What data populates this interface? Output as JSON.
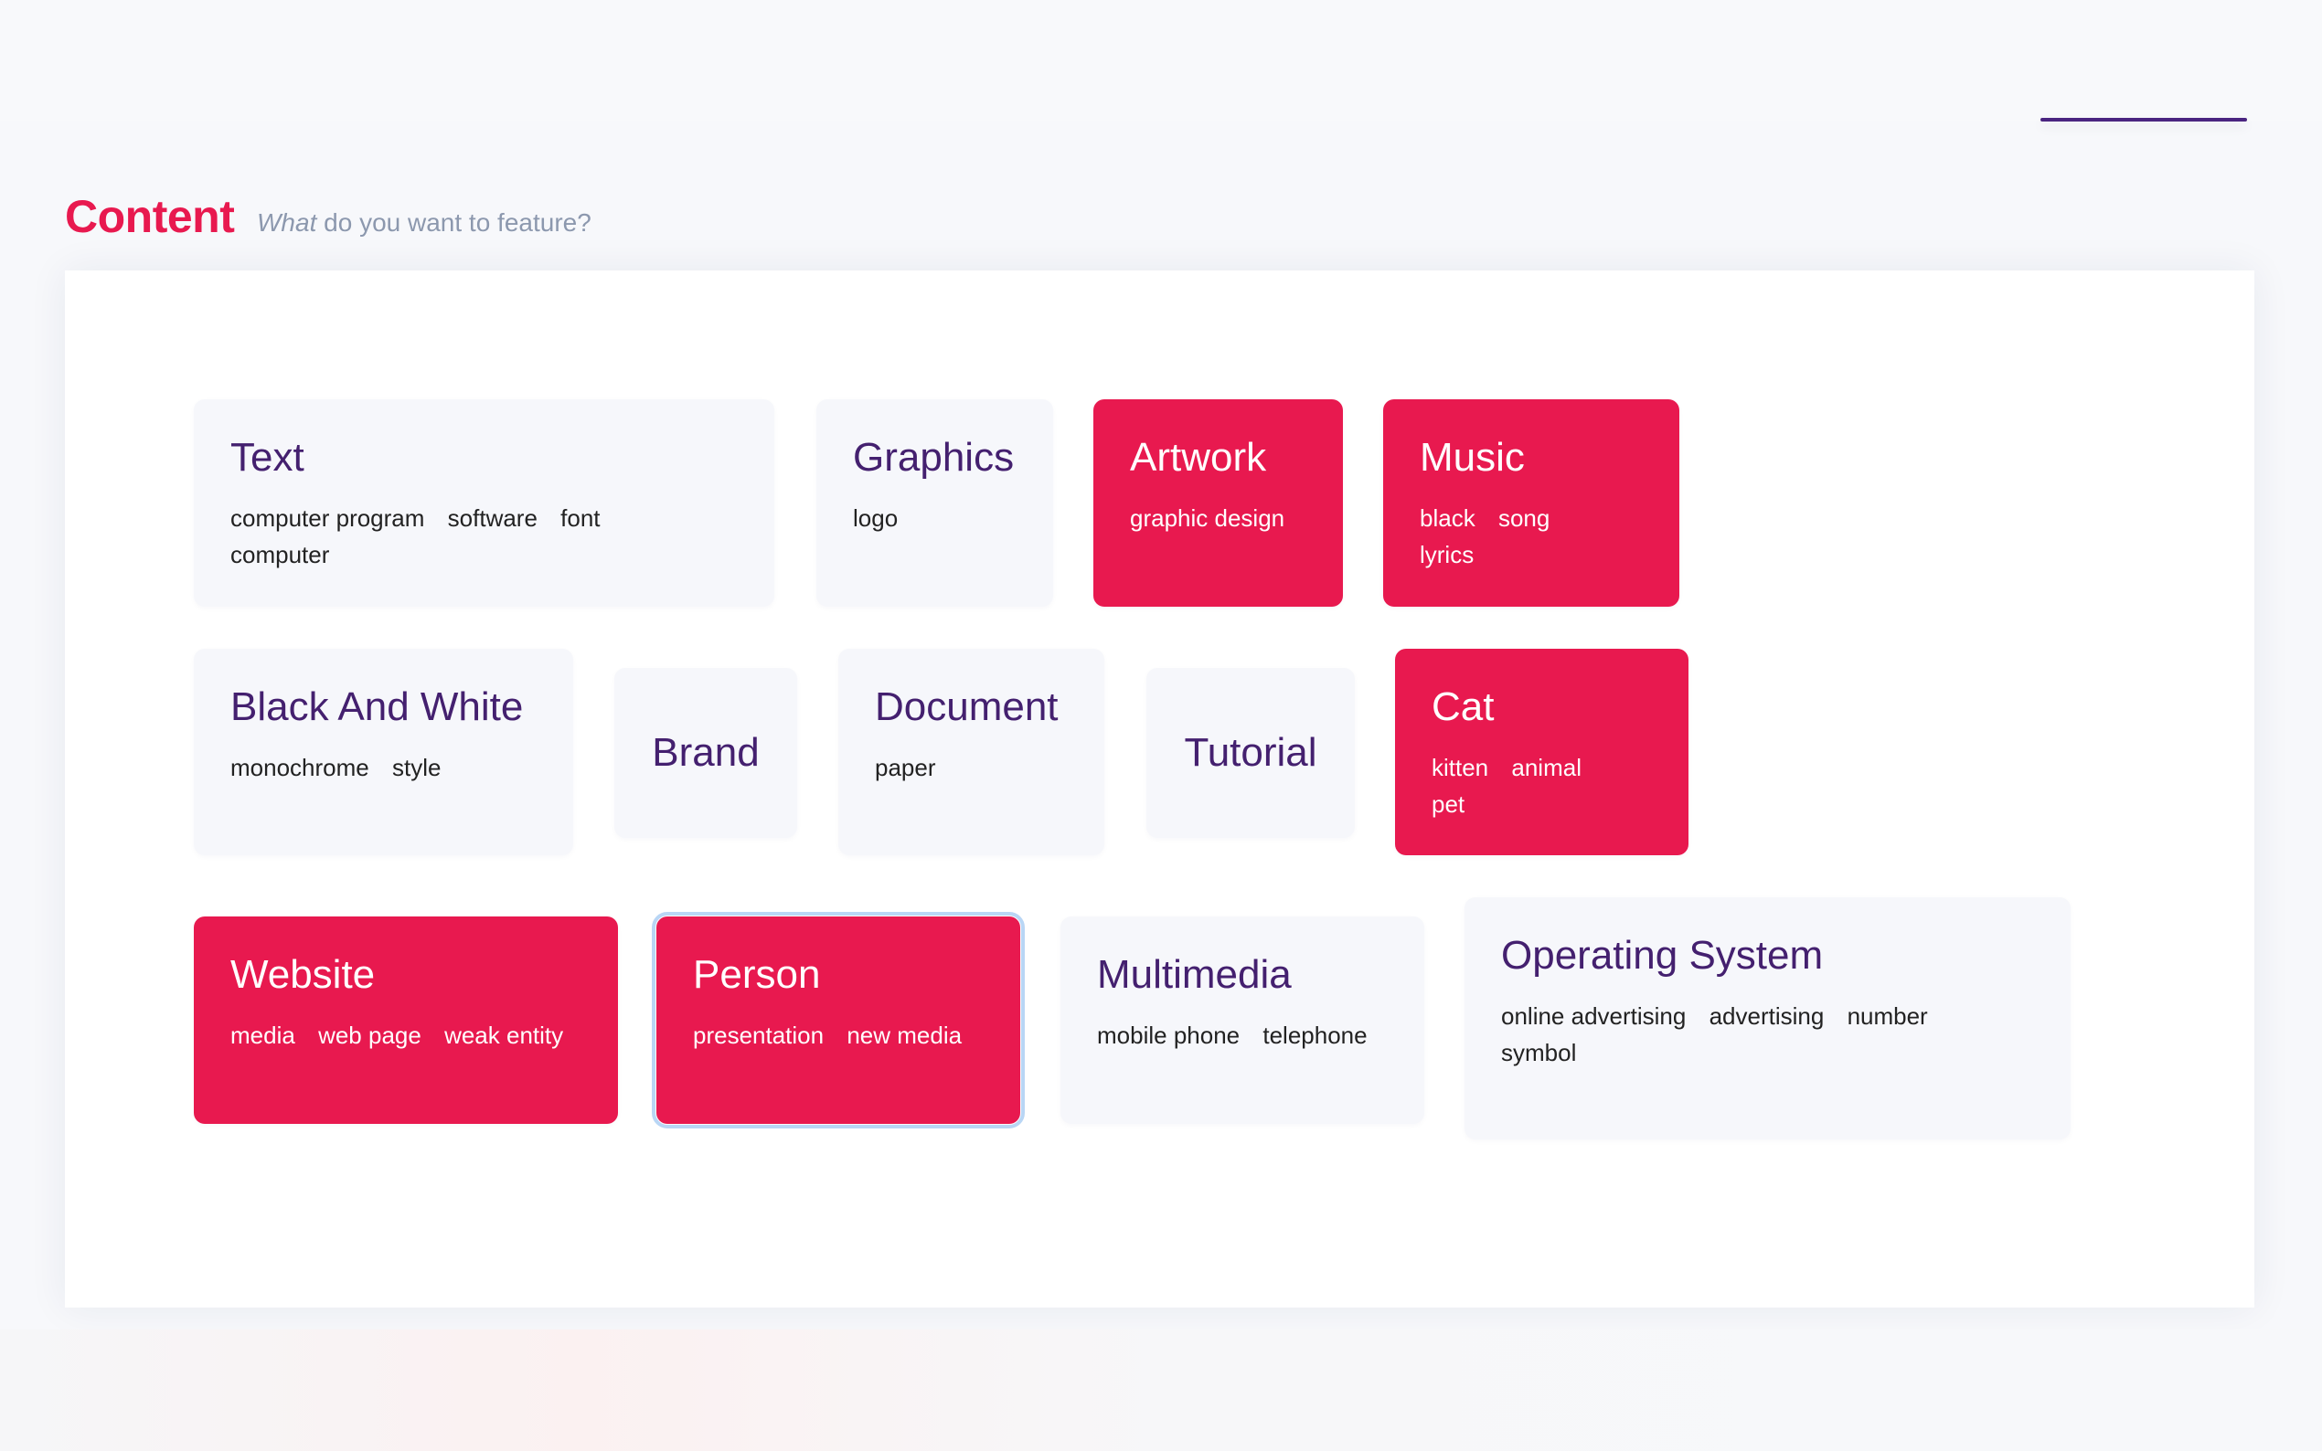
{
  "header": {
    "title": "Content",
    "subtitle_em": "What",
    "subtitle_rest": " do you want to feature?"
  },
  "colors": {
    "accent": "#e8194f",
    "purple": "#44206f",
    "card_bg": "#f6f7fb"
  },
  "cards": [
    {
      "title": "Text",
      "tags": [
        "computer program",
        "software",
        "font",
        "computer"
      ],
      "selected": false
    },
    {
      "title": "Graphics",
      "tags": [
        "logo"
      ],
      "selected": false
    },
    {
      "title": "Artwork",
      "tags": [
        "graphic design"
      ],
      "selected": true
    },
    {
      "title": "Music",
      "tags": [
        "black",
        "song",
        "lyrics"
      ],
      "selected": true
    },
    {
      "title": "Black And White",
      "tags": [
        "monochrome",
        "style"
      ],
      "selected": false
    },
    {
      "title": "Brand",
      "tags": [],
      "selected": false
    },
    {
      "title": "Document",
      "tags": [
        "paper"
      ],
      "selected": false
    },
    {
      "title": "Tutorial",
      "tags": [],
      "selected": false
    },
    {
      "title": "Cat",
      "tags": [
        "kitten",
        "animal",
        "pet"
      ],
      "selected": true
    },
    {
      "title": "Website",
      "tags": [
        "media",
        "web page",
        "weak entity"
      ],
      "selected": true
    },
    {
      "title": "Person",
      "tags": [
        "presentation",
        "new media"
      ],
      "selected": true,
      "focused": true
    },
    {
      "title": "Multimedia",
      "tags": [
        "mobile phone",
        "telephone"
      ],
      "selected": false
    },
    {
      "title": "Operating System",
      "tags": [
        "online advertising",
        "advertising",
        "number",
        "symbol"
      ],
      "selected": false
    }
  ]
}
